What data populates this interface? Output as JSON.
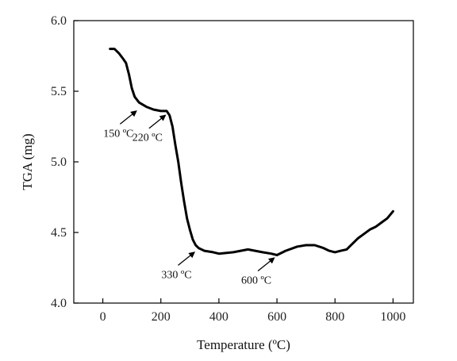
{
  "chart_data": {
    "type": "line",
    "xlabel": "Temperature (ºC)",
    "ylabel": "TGA (mg)",
    "xlim": [
      -100,
      1070
    ],
    "ylim": [
      4.0,
      6.0
    ],
    "xticks": [
      "0",
      "200",
      "400",
      "600",
      "800",
      "1000"
    ],
    "yticks": [
      "4.0",
      "4.5",
      "5.0",
      "5.5",
      "6.0"
    ],
    "grid": false,
    "line_color": "#000000",
    "series": [
      {
        "points": [
          [
            25,
            5.8
          ],
          [
            40,
            5.8
          ],
          [
            55,
            5.77
          ],
          [
            70,
            5.73
          ],
          [
            80,
            5.7
          ],
          [
            90,
            5.62
          ],
          [
            100,
            5.52
          ],
          [
            110,
            5.46
          ],
          [
            125,
            5.42
          ],
          [
            150,
            5.39
          ],
          [
            175,
            5.37
          ],
          [
            200,
            5.36
          ],
          [
            220,
            5.36
          ],
          [
            230,
            5.33
          ],
          [
            240,
            5.25
          ],
          [
            250,
            5.12
          ],
          [
            260,
            5.0
          ],
          [
            270,
            4.85
          ],
          [
            280,
            4.72
          ],
          [
            290,
            4.6
          ],
          [
            300,
            4.52
          ],
          [
            310,
            4.45
          ],
          [
            320,
            4.41
          ],
          [
            330,
            4.39
          ],
          [
            350,
            4.37
          ],
          [
            380,
            4.36
          ],
          [
            400,
            4.35
          ],
          [
            450,
            4.36
          ],
          [
            500,
            4.38
          ],
          [
            550,
            4.36
          ],
          [
            580,
            4.35
          ],
          [
            600,
            4.34
          ],
          [
            630,
            4.37
          ],
          [
            670,
            4.4
          ],
          [
            700,
            4.41
          ],
          [
            730,
            4.41
          ],
          [
            760,
            4.39
          ],
          [
            780,
            4.37
          ],
          [
            800,
            4.36
          ],
          [
            820,
            4.37
          ],
          [
            840,
            4.38
          ],
          [
            860,
            4.42
          ],
          [
            880,
            4.46
          ],
          [
            900,
            4.49
          ],
          [
            920,
            4.52
          ],
          [
            940,
            4.54
          ],
          [
            960,
            4.57
          ],
          [
            980,
            4.6
          ],
          [
            1000,
            4.65
          ]
        ]
      }
    ],
    "annotations": [
      {
        "label": "150 ºC",
        "x": 125,
        "y": 5.38,
        "dir": "left-below"
      },
      {
        "label": "220 ºC",
        "x": 225,
        "y": 5.35,
        "dir": "left-below"
      },
      {
        "label": "330 ºC",
        "x": 325,
        "y": 4.38,
        "dir": "left-below"
      },
      {
        "label": "600 ºC",
        "x": 600,
        "y": 4.34,
        "dir": "left-below"
      }
    ]
  }
}
